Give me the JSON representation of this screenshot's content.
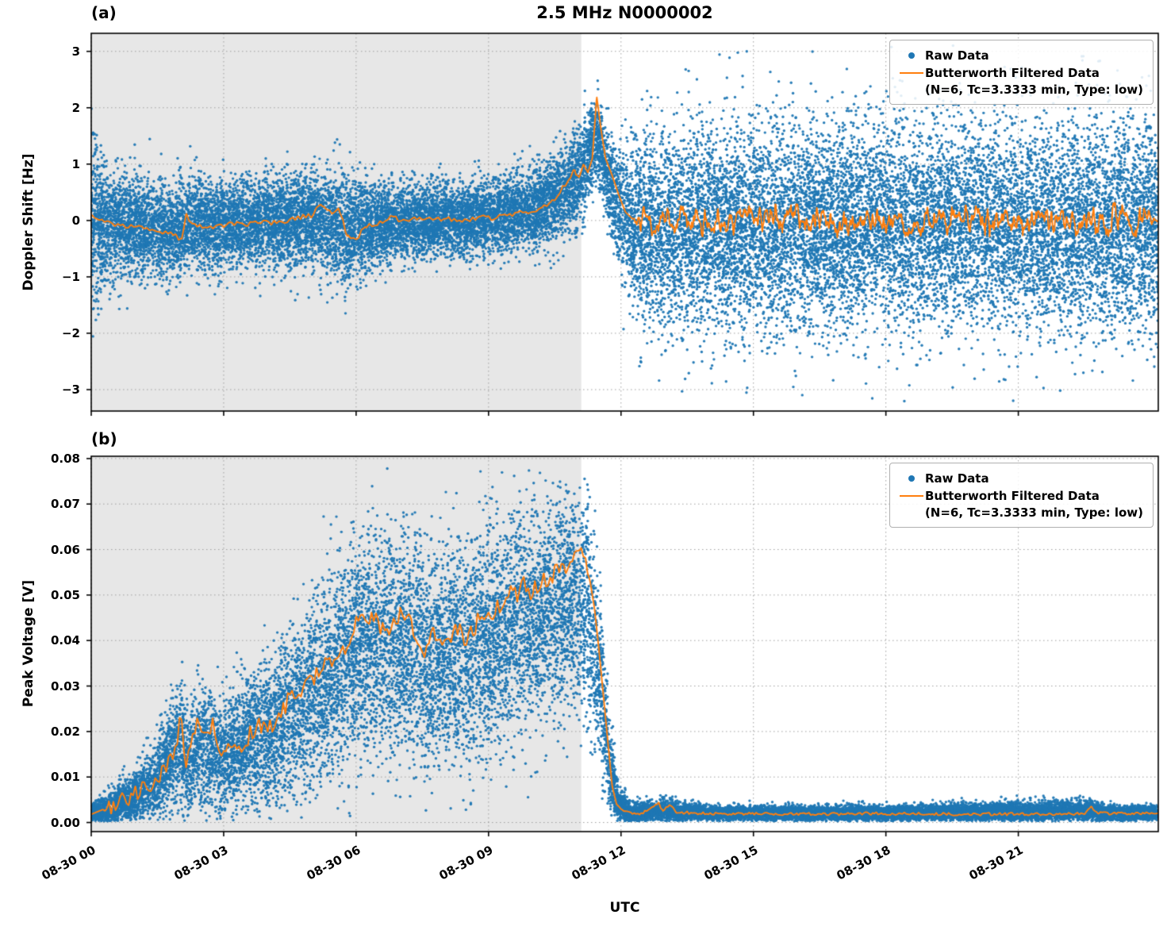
{
  "figure": {
    "title": "2.5 MHz N0000002",
    "panel_a_label": "(a)",
    "panel_b_label": "(b)",
    "xlabel": "UTC",
    "ylabel_a": "Doppler Shift [Hz]",
    "ylabel_b": "Peak Voltage [V]"
  },
  "legend": {
    "raw_label": "Raw Data",
    "filtered_label_line1": "Butterworth Filtered Data",
    "filtered_label_line2": "(N=6, Tc=3.3333 min, Type: low)"
  },
  "colors": {
    "raw": "#1f77b4",
    "filtered": "#ff7f0e",
    "shade": "#e7e7e7",
    "grid": "#9e9e9e",
    "axis": "#000000"
  },
  "chart_data": [
    {
      "panel": "a",
      "type": "scatter",
      "title": "2.5 MHz N0000002",
      "ylabel": "Doppler Shift [Hz]",
      "xlabel": "UTC",
      "grid": true,
      "legend_position": "upper right",
      "xlim": [
        0,
        24.17
      ],
      "ylim": [
        -3.38,
        3.32
      ],
      "shade_region": [
        0,
        11.1
      ],
      "x_ticks": [
        {
          "t": 0,
          "label": "08-30 00"
        },
        {
          "t": 3,
          "label": "08-30 03"
        },
        {
          "t": 6,
          "label": "08-30 06"
        },
        {
          "t": 9,
          "label": "08-30 09"
        },
        {
          "t": 12,
          "label": "08-30 12"
        },
        {
          "t": 15,
          "label": "08-30 15"
        },
        {
          "t": 18,
          "label": "08-30 18"
        },
        {
          "t": 21,
          "label": "08-30 21"
        }
      ],
      "y_ticks": [
        {
          "v": -3,
          "label": "−3"
        },
        {
          "v": -2,
          "label": "−2"
        },
        {
          "v": -1,
          "label": "−1"
        },
        {
          "v": 0,
          "label": "0"
        },
        {
          "v": 1,
          "label": "1"
        },
        {
          "v": 2,
          "label": "2"
        },
        {
          "v": 3,
          "label": "3"
        }
      ],
      "series": [
        {
          "name": "Raw Data",
          "kind": "scatter"
        },
        {
          "name": "Butterworth Filtered Data (N=6, Tc=3.3333 min, Type: low)",
          "kind": "line"
        }
      ],
      "seed": 7,
      "n_points": 26000,
      "scatter_clip": [
        -3.25,
        3.25
      ],
      "scatter_envelope": [
        [
          0,
          0.0,
          0.8
        ],
        [
          0.3,
          -0.05,
          0.5
        ],
        [
          1,
          -0.1,
          0.42
        ],
        [
          2,
          -0.2,
          0.38
        ],
        [
          2.2,
          -0.1,
          0.42
        ],
        [
          3,
          -0.05,
          0.38
        ],
        [
          4,
          0.0,
          0.38
        ],
        [
          5,
          0.05,
          0.42
        ],
        [
          5.8,
          -0.2,
          0.5
        ],
        [
          6.2,
          -0.1,
          0.4
        ],
        [
          7,
          0.0,
          0.32
        ],
        [
          8,
          0.0,
          0.32
        ],
        [
          9,
          0.05,
          0.32
        ],
        [
          10,
          0.2,
          0.35
        ],
        [
          10.7,
          0.5,
          0.4
        ],
        [
          11.1,
          0.8,
          0.45
        ],
        [
          11.45,
          1.5,
          0.35
        ],
        [
          11.6,
          1.0,
          0.4
        ],
        [
          11.9,
          0.3,
          0.5
        ],
        [
          12.2,
          -0.1,
          0.75
        ],
        [
          13,
          -0.15,
          0.85
        ],
        [
          15,
          -0.15,
          0.9
        ],
        [
          18,
          -0.1,
          0.9
        ],
        [
          21,
          -0.1,
          0.9
        ],
        [
          24.2,
          -0.1,
          0.9
        ]
      ],
      "line_keypoints": [
        [
          0,
          0.1
        ],
        [
          0.2,
          0.0
        ],
        [
          0.5,
          -0.05
        ],
        [
          0.8,
          -0.1
        ],
        [
          1.2,
          -0.12
        ],
        [
          1.6,
          -0.2
        ],
        [
          1.9,
          -0.25
        ],
        [
          2.05,
          -0.35
        ],
        [
          2.15,
          0.1
        ],
        [
          2.3,
          -0.05
        ],
        [
          2.6,
          -0.15
        ],
        [
          2.9,
          -0.1
        ],
        [
          3.2,
          -0.05
        ],
        [
          3.5,
          -0.1
        ],
        [
          3.8,
          0.0
        ],
        [
          4.1,
          -0.05
        ],
        [
          4.4,
          0.0
        ],
        [
          4.7,
          0.05
        ],
        [
          5.0,
          0.1
        ],
        [
          5.2,
          0.3
        ],
        [
          5.45,
          0.15
        ],
        [
          5.6,
          0.25
        ],
        [
          5.8,
          -0.3
        ],
        [
          6.0,
          -0.35
        ],
        [
          6.2,
          -0.1
        ],
        [
          6.5,
          -0.05
        ],
        [
          6.8,
          0.05
        ],
        [
          7.1,
          0.0
        ],
        [
          7.4,
          0.05
        ],
        [
          7.7,
          0.0
        ],
        [
          8.0,
          0.05
        ],
        [
          8.4,
          0.0
        ],
        [
          8.8,
          0.05
        ],
        [
          9.2,
          0.05
        ],
        [
          9.5,
          0.1
        ],
        [
          9.8,
          0.15
        ],
        [
          10.1,
          0.2
        ],
        [
          10.4,
          0.3
        ],
        [
          10.6,
          0.5
        ],
        [
          10.8,
          0.7
        ],
        [
          10.95,
          0.9
        ],
        [
          11.05,
          0.75
        ],
        [
          11.15,
          1.0
        ],
        [
          11.25,
          0.85
        ],
        [
          11.35,
          1.1
        ],
        [
          11.45,
          2.2
        ],
        [
          11.55,
          1.6
        ],
        [
          11.65,
          1.1
        ],
        [
          11.8,
          0.8
        ],
        [
          11.95,
          0.45
        ],
        [
          12.1,
          0.15
        ],
        [
          12.3,
          0.0
        ],
        [
          24.17,
          0.0
        ]
      ],
      "line_noise": [
        {
          "range": [
            0,
            11.2
          ],
          "amp": 0.045,
          "step": 0.06
        },
        {
          "range": [
            12.25,
            24.17
          ],
          "amp": 0.24,
          "step": 0.05
        },
        {
          "range": [
            12.25,
            24.17
          ],
          "amp": 0.1,
          "step": 0.015
        }
      ]
    },
    {
      "panel": "b",
      "type": "scatter",
      "title": "",
      "ylabel": "Peak Voltage [V]",
      "xlabel": "UTC",
      "grid": true,
      "legend_position": "upper right",
      "xlim": [
        0,
        24.17
      ],
      "ylim": [
        -0.002,
        0.0805
      ],
      "shade_region": [
        0,
        11.1
      ],
      "x_ticks": [
        {
          "t": 0,
          "label": "08-30 00"
        },
        {
          "t": 3,
          "label": "08-30 03"
        },
        {
          "t": 6,
          "label": "08-30 06"
        },
        {
          "t": 9,
          "label": "08-30 09"
        },
        {
          "t": 12,
          "label": "08-30 12"
        },
        {
          "t": 15,
          "label": "08-30 15"
        },
        {
          "t": 18,
          "label": "08-30 18"
        },
        {
          "t": 21,
          "label": "08-30 21"
        }
      ],
      "y_ticks": [
        {
          "v": 0.0,
          "label": "0.00"
        },
        {
          "v": 0.01,
          "label": "0.01"
        },
        {
          "v": 0.02,
          "label": "0.02"
        },
        {
          "v": 0.03,
          "label": "0.03"
        },
        {
          "v": 0.04,
          "label": "0.04"
        },
        {
          "v": 0.05,
          "label": "0.05"
        },
        {
          "v": 0.06,
          "label": "0.06"
        },
        {
          "v": 0.07,
          "label": "0.07"
        },
        {
          "v": 0.08,
          "label": "0.08"
        }
      ],
      "series": [
        {
          "name": "Raw Data",
          "kind": "scatter"
        },
        {
          "name": "Butterworth Filtered Data (N=6, Tc=3.3333 min, Type: low)",
          "kind": "line"
        }
      ],
      "seed": 13,
      "n_points": 24000,
      "scatter_clip": [
        0.0003,
        0.078
      ],
      "scatter_envelope": [
        [
          0,
          0.002,
          0.001
        ],
        [
          0.5,
          0.003,
          0.002
        ],
        [
          1,
          0.006,
          0.003
        ],
        [
          1.5,
          0.009,
          0.004
        ],
        [
          2,
          0.018,
          0.007
        ],
        [
          2.2,
          0.012,
          0.006
        ],
        [
          2.5,
          0.018,
          0.007
        ],
        [
          3,
          0.014,
          0.006
        ],
        [
          3.5,
          0.017,
          0.007
        ],
        [
          4,
          0.019,
          0.008
        ],
        [
          4.5,
          0.024,
          0.009
        ],
        [
          5,
          0.028,
          0.01
        ],
        [
          5.5,
          0.032,
          0.011
        ],
        [
          6,
          0.038,
          0.012
        ],
        [
          6.3,
          0.04,
          0.012
        ],
        [
          6.8,
          0.038,
          0.012
        ],
        [
          7.2,
          0.04,
          0.012
        ],
        [
          7.6,
          0.035,
          0.012
        ],
        [
          8,
          0.037,
          0.012
        ],
        [
          8.5,
          0.037,
          0.012
        ],
        [
          9,
          0.04,
          0.012
        ],
        [
          9.5,
          0.043,
          0.012
        ],
        [
          10,
          0.044,
          0.012
        ],
        [
          10.5,
          0.048,
          0.012
        ],
        [
          11,
          0.05,
          0.012
        ],
        [
          11.25,
          0.048,
          0.012
        ],
        [
          11.45,
          0.035,
          0.01
        ],
        [
          11.6,
          0.025,
          0.008
        ],
        [
          11.75,
          0.012,
          0.005
        ],
        [
          11.95,
          0.004,
          0.002
        ],
        [
          12.2,
          0.002,
          0.0012
        ],
        [
          13,
          0.0025,
          0.0012
        ],
        [
          14,
          0.002,
          0.0008
        ],
        [
          18,
          0.002,
          0.0008
        ],
        [
          22.6,
          0.0025,
          0.0012
        ],
        [
          23,
          0.002,
          0.0008
        ],
        [
          24.2,
          0.002,
          0.0008
        ]
      ],
      "line_keypoints": [
        [
          0,
          0.0018
        ],
        [
          0.3,
          0.003
        ],
        [
          0.6,
          0.004
        ],
        [
          0.9,
          0.006
        ],
        [
          1.2,
          0.008
        ],
        [
          1.5,
          0.01
        ],
        [
          1.7,
          0.013
        ],
        [
          1.9,
          0.017
        ],
        [
          2.0,
          0.021
        ],
        [
          2.05,
          0.023
        ],
        [
          2.15,
          0.012
        ],
        [
          2.3,
          0.019
        ],
        [
          2.45,
          0.022
        ],
        [
          2.6,
          0.02
        ],
        [
          2.75,
          0.021
        ],
        [
          2.9,
          0.016
        ],
        [
          3.05,
          0.015
        ],
        [
          3.2,
          0.017
        ],
        [
          3.35,
          0.016
        ],
        [
          3.5,
          0.018
        ],
        [
          3.65,
          0.02
        ],
        [
          3.8,
          0.022
        ],
        [
          3.95,
          0.02
        ],
        [
          4.1,
          0.022
        ],
        [
          4.25,
          0.024
        ],
        [
          4.4,
          0.026
        ],
        [
          4.55,
          0.028
        ],
        [
          4.7,
          0.027
        ],
        [
          4.85,
          0.03
        ],
        [
          5.0,
          0.031
        ],
        [
          5.15,
          0.033
        ],
        [
          5.3,
          0.035
        ],
        [
          5.45,
          0.034
        ],
        [
          5.6,
          0.037
        ],
        [
          5.75,
          0.038
        ],
        [
          5.9,
          0.041
        ],
        [
          6.05,
          0.046
        ],
        [
          6.2,
          0.043
        ],
        [
          6.35,
          0.046
        ],
        [
          6.5,
          0.044
        ],
        [
          6.65,
          0.042
        ],
        [
          6.8,
          0.043
        ],
        [
          6.95,
          0.045
        ],
        [
          7.1,
          0.046
        ],
        [
          7.25,
          0.044
        ],
        [
          7.4,
          0.04
        ],
        [
          7.55,
          0.038
        ],
        [
          7.7,
          0.041
        ],
        [
          7.85,
          0.042
        ],
        [
          8.0,
          0.039
        ],
        [
          8.15,
          0.041
        ],
        [
          8.3,
          0.043
        ],
        [
          8.45,
          0.04
        ],
        [
          8.6,
          0.042
        ],
        [
          8.75,
          0.044
        ],
        [
          8.9,
          0.046
        ],
        [
          9.05,
          0.045
        ],
        [
          9.2,
          0.047
        ],
        [
          9.35,
          0.049
        ],
        [
          9.5,
          0.051
        ],
        [
          9.65,
          0.05
        ],
        [
          9.8,
          0.052
        ],
        [
          9.95,
          0.049
        ],
        [
          10.1,
          0.052
        ],
        [
          10.25,
          0.054
        ],
        [
          10.4,
          0.053
        ],
        [
          10.55,
          0.056
        ],
        [
          10.7,
          0.055
        ],
        [
          10.85,
          0.057
        ],
        [
          11.0,
          0.058
        ],
        [
          11.1,
          0.059
        ],
        [
          11.2,
          0.057
        ],
        [
          11.3,
          0.053
        ],
        [
          11.4,
          0.047
        ],
        [
          11.5,
          0.038
        ],
        [
          11.6,
          0.028
        ],
        [
          11.7,
          0.018
        ],
        [
          11.8,
          0.008
        ],
        [
          11.9,
          0.004
        ],
        [
          12.0,
          0.003
        ],
        [
          12.2,
          0.0022
        ],
        [
          12.5,
          0.002
        ],
        [
          12.85,
          0.0045
        ],
        [
          12.95,
          0.0025
        ],
        [
          13.1,
          0.004
        ],
        [
          13.25,
          0.0022
        ],
        [
          14,
          0.002
        ],
        [
          16,
          0.0018
        ],
        [
          18,
          0.002
        ],
        [
          20,
          0.0018
        ],
        [
          22.5,
          0.002
        ],
        [
          22.65,
          0.0035
        ],
        [
          22.8,
          0.002
        ],
        [
          24.17,
          0.002
        ]
      ],
      "line_noise": [
        {
          "range": [
            0.25,
            11.3
          ],
          "amp": 0.0022,
          "step": 0.05
        },
        {
          "range": [
            11.9,
            24.17
          ],
          "amp": 0.00035,
          "step": 0.04
        }
      ]
    }
  ]
}
